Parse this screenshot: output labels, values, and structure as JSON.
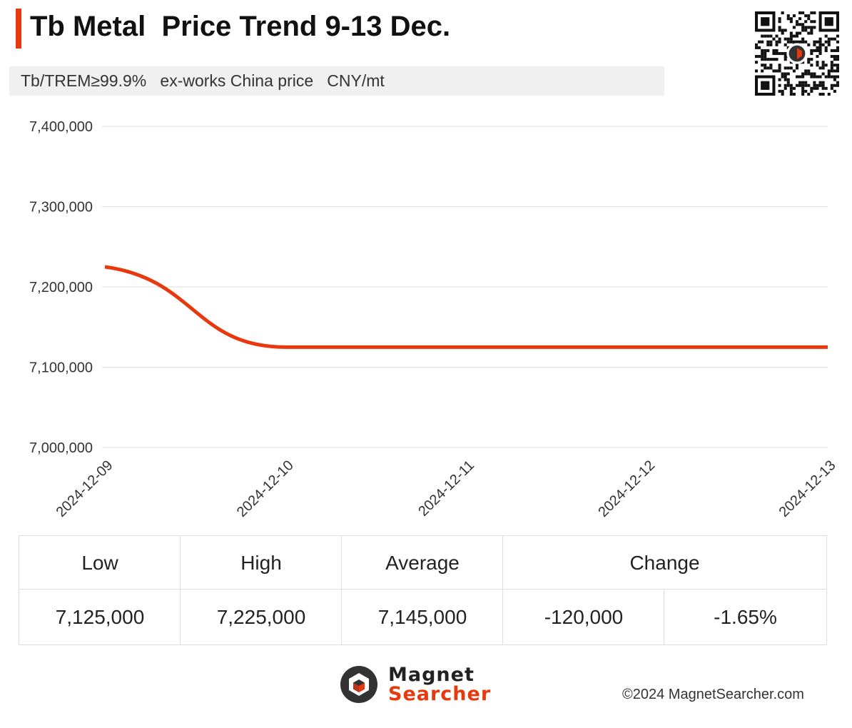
{
  "header": {
    "title": "Tb Metal  Price Trend 9-13 Dec.",
    "subtitle": "Tb/TREM≥99.9%   ex-works China price   CNY/mt",
    "accent_color": "#e8380d"
  },
  "qr_code": {
    "icon": "qr-code-icon"
  },
  "chart_data": {
    "type": "line",
    "categories": [
      "2024-12-09",
      "2024-12-10",
      "2024-12-11",
      "2024-12-12",
      "2024-12-13"
    ],
    "series": [
      {
        "values": [
          7225000,
          7125000,
          7125000,
          7125000,
          7125000
        ],
        "color": "#e8380d"
      }
    ],
    "ylim": [
      7000000,
      7400000
    ],
    "yticks": [
      7000000,
      7100000,
      7200000,
      7300000,
      7400000
    ],
    "ytick_labels": [
      "7,000,000",
      "7,100,000",
      "7,200,000",
      "7,300,000",
      "7,400,000"
    ],
    "title": "",
    "xlabel": "",
    "ylabel": "",
    "grid": "horizontal",
    "smooth": true
  },
  "stats_table": {
    "headers": {
      "low": "Low",
      "high": "High",
      "average": "Average",
      "change": "Change"
    },
    "values": {
      "low": "7,125,000",
      "high": "7,225,000",
      "average": "7,145,000",
      "change_abs": "-120,000",
      "change_pct": "-1.65%"
    }
  },
  "footer": {
    "logo_line1": "Magnet",
    "logo_line2": "Searcher",
    "logo_icon": "magnet-searcher-logo-icon",
    "copyright": "©2024 MagnetSearcher.com"
  }
}
